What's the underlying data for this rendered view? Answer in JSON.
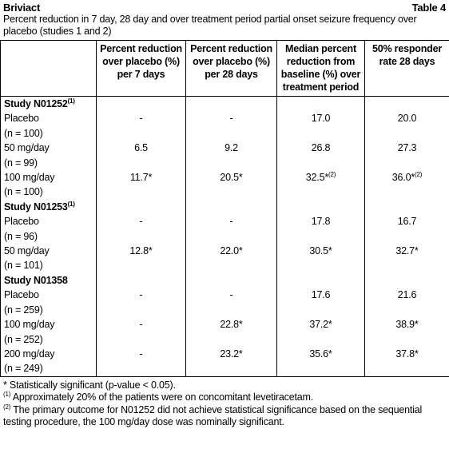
{
  "header": {
    "title": "Briviact",
    "table_number": "Table 4",
    "caption": "Percent reduction in 7 day, 28 day and over treatment period partial onset seizure frequency over placebo (studies 1 and 2)"
  },
  "table": {
    "columns": [
      "Percent reduction over placebo (%) per 7 days",
      "Percent reduction over placebo (%) per 28 days",
      "Median percent reduction from baseline (%) over treatment period",
      "50% responder rate 28 days"
    ],
    "groups": [
      {
        "study": "Study N01252",
        "study_sup": "(1)",
        "rows": [
          {
            "label": "Placebo",
            "n": "(n = 100)",
            "cells": [
              {
                "text": "-"
              },
              {
                "text": "-"
              },
              {
                "text": "17.0"
              },
              {
                "text": "20.0"
              }
            ]
          },
          {
            "label": "50 mg/day",
            "n": "(n = 99)",
            "cells": [
              {
                "text": "6.5"
              },
              {
                "text": "9.2"
              },
              {
                "text": "26.8"
              },
              {
                "text": "27.3"
              }
            ]
          },
          {
            "label": "100 mg/day",
            "n": "(n = 100)",
            "cells": [
              {
                "text": "11.7*"
              },
              {
                "text": "20.5*"
              },
              {
                "text": "32.5*",
                "sup": "(2)"
              },
              {
                "text": "36.0*",
                "sup": "(2)"
              }
            ]
          }
        ]
      },
      {
        "study": "Study N01253",
        "study_sup": "(1)",
        "rows": [
          {
            "label": "Placebo",
            "n": "(n = 96)",
            "cells": [
              {
                "text": "-"
              },
              {
                "text": "-"
              },
              {
                "text": "17.8"
              },
              {
                "text": "16.7"
              }
            ]
          },
          {
            "label": "50 mg/day",
            "n": "(n = 101)",
            "cells": [
              {
                "text": "12.8*"
              },
              {
                "text": "22.0*"
              },
              {
                "text": "30.5*"
              },
              {
                "text": "32.7*"
              }
            ]
          }
        ]
      },
      {
        "study": "Study N01358",
        "rows": [
          {
            "label": "Placebo",
            "n": "(n = 259)",
            "cells": [
              {
                "text": "-"
              },
              {
                "text": "-"
              },
              {
                "text": "17.6"
              },
              {
                "text": "21.6"
              }
            ]
          },
          {
            "label": "100 mg/day",
            "n": "(n = 252)",
            "cells": [
              {
                "text": "-"
              },
              {
                "text": "22.8*"
              },
              {
                "text": "37.2*"
              },
              {
                "text": "38.9*"
              }
            ]
          },
          {
            "label": "200 mg/day",
            "n": "(n = 249)",
            "cells": [
              {
                "text": "-"
              },
              {
                "text": "23.2*"
              },
              {
                "text": "35.6*"
              },
              {
                "text": "37.8*"
              }
            ]
          }
        ]
      }
    ]
  },
  "footnotes": [
    {
      "text": "* Statistically significant (p-value < 0.05)."
    },
    {
      "sup": "(1)",
      "text": "Approximately 20% of the patients were on concomitant levetiracetam."
    },
    {
      "sup": "(2)",
      "text": "The primary outcome for N01252 did not achieve statistical significance based on the sequential testing procedure, the 100 mg/day dose was nominally significant."
    }
  ]
}
